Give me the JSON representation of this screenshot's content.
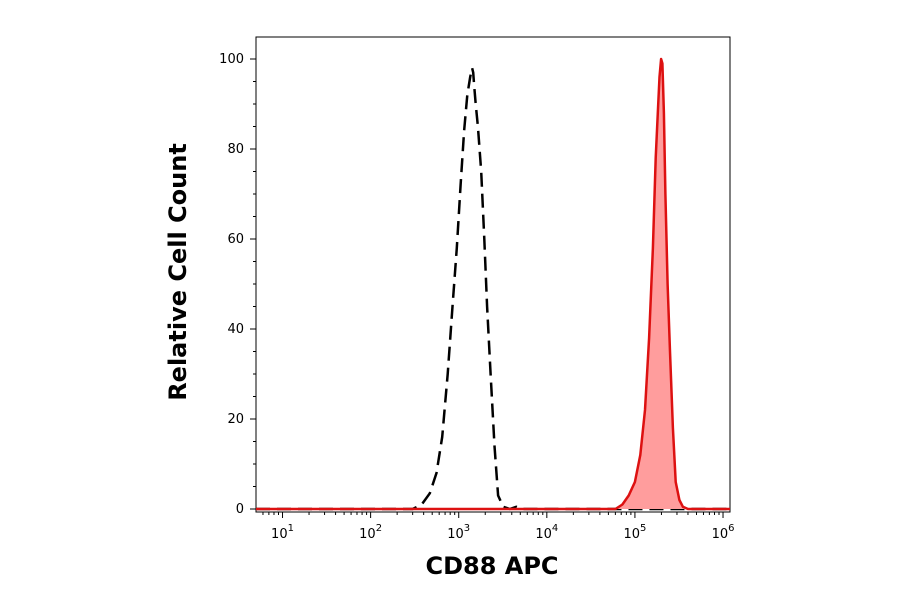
{
  "chart_data": {
    "type": "area",
    "title": "",
    "xlabel": "CD88 APC",
    "ylabel": "Relative Cell Count",
    "x_scale": "log",
    "xlim": [
      5,
      1200000
    ],
    "ylim": [
      0,
      104
    ],
    "x_ticks": [
      {
        "value": 10,
        "base": "10",
        "exp": "1"
      },
      {
        "value": 100,
        "base": "10",
        "exp": "2"
      },
      {
        "value": 1000,
        "base": "10",
        "exp": "3"
      },
      {
        "value": 10000,
        "base": "10",
        "exp": "4"
      },
      {
        "value": 100000,
        "base": "10",
        "exp": "5"
      },
      {
        "value": 1000000,
        "base": "10",
        "exp": "6"
      }
    ],
    "y_ticks": [
      "0",
      "20",
      "40",
      "60",
      "80",
      "100"
    ],
    "grid": false,
    "series": [
      {
        "style": "dashed-outline",
        "color": "#000000",
        "x": [
          5,
          300,
          380,
          470,
          560,
          650,
          750,
          850,
          950,
          1050,
          1150,
          1250,
          1350,
          1420,
          1460,
          1500,
          1560,
          1650,
          1800,
          1950,
          2100,
          2300,
          2550,
          2800,
          3200,
          3800,
          4500,
          5200,
          6500,
          1200000
        ],
        "y": [
          0,
          0,
          1,
          3.5,
          8,
          16,
          30,
          45,
          58,
          72,
          84,
          92,
          96,
          98,
          97,
          94,
          90,
          85,
          75,
          60,
          45,
          30,
          14,
          3,
          0.5,
          0,
          0.5,
          0,
          0,
          0
        ]
      },
      {
        "style": "filled",
        "color": "#dd1111",
        "fill": "#ff9d9d",
        "x": [
          5,
          60000,
          72000,
          85000,
          100000,
          115000,
          130000,
          145000,
          160000,
          172000,
          182000,
          190000,
          198000,
          205000,
          213000,
          222000,
          235000,
          250000,
          270000,
          290000,
          320000,
          350000,
          400000,
          1200000
        ],
        "y": [
          0,
          0,
          1,
          3,
          6,
          12,
          22,
          38,
          58,
          78,
          88,
          96,
          100,
          99,
          88,
          70,
          50,
          35,
          18,
          6,
          2,
          0.5,
          0,
          0
        ]
      }
    ]
  }
}
